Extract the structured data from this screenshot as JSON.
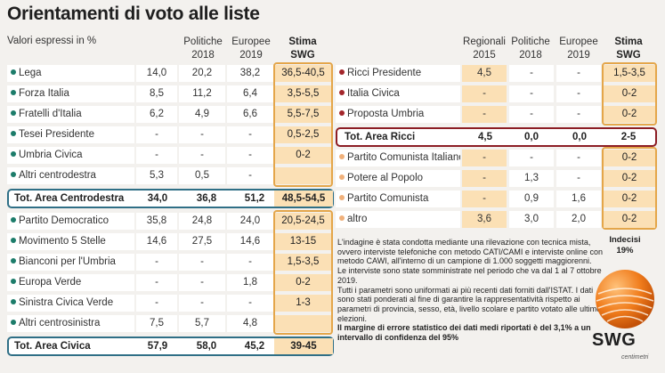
{
  "title": "Orientamenti di voto alle liste",
  "subtitle": "Valori espressi in %",
  "left": {
    "headers": {
      "pol": [
        "Politiche",
        "2018"
      ],
      "eur": [
        "Europee",
        "2019"
      ],
      "stima": [
        "Stima",
        "SWG"
      ]
    },
    "rows": [
      {
        "name": "Lega",
        "dot": "#1c7c6a",
        "c1": "14,0",
        "c2": "20,2",
        "c3": "38,2",
        "s": "36,5-40,5"
      },
      {
        "name": "Forza Italia",
        "dot": "#1c7c6a",
        "c1": "8,5",
        "c2": "11,2",
        "c3": "6,4",
        "s": "3,5-5,5"
      },
      {
        "name": "Fratelli d'Italia",
        "dot": "#1c7c6a",
        "c1": "6,2",
        "c2": "4,9",
        "c3": "6,6",
        "s": "5,5-7,5"
      },
      {
        "name": "Tesei Presidente",
        "dot": "#1c7c6a",
        "c1": "-",
        "c2": "-",
        "c3": "-",
        "s": "0,5-2,5"
      },
      {
        "name": "Umbria Civica",
        "dot": "#1c7c6a",
        "c1": "-",
        "c2": "-",
        "c3": "-",
        "s": "0-2"
      },
      {
        "name": "Altri centrodestra",
        "dot": "#1c7c6a",
        "c1": "5,3",
        "c2": "0,5",
        "c3": "-",
        "s": ""
      }
    ],
    "total1": {
      "name": "Tot. Area Centrodestra",
      "c1": "34,0",
      "c2": "36,8",
      "c3": "51,2",
      "s": "48,5-54,5"
    },
    "rows2": [
      {
        "name": "Partito Democratico",
        "dot": "#1c7c6a",
        "c1": "35,8",
        "c2": "24,8",
        "c3": "24,0",
        "s": "20,5-24,5"
      },
      {
        "name": "Movimento 5 Stelle",
        "dot": "#1c7c6a",
        "c1": "14,6",
        "c2": "27,5",
        "c3": "14,6",
        "s": "13-15"
      },
      {
        "name": "Bianconi per l'Umbria",
        "dot": "#1c7c6a",
        "c1": "-",
        "c2": "-",
        "c3": "-",
        "s": "1,5-3,5"
      },
      {
        "name": "Europa Verde",
        "dot": "#1c7c6a",
        "c1": "-",
        "c2": "-",
        "c3": "1,8",
        "s": "0-2"
      },
      {
        "name": "Sinistra Civica Verde",
        "dot": "#1c7c6a",
        "c1": "-",
        "c2": "-",
        "c3": "-",
        "s": "1-3"
      },
      {
        "name": "Altri centrosinistra",
        "dot": "#1c7c6a",
        "c1": "7,5",
        "c2": "5,7",
        "c3": "4,8",
        "s": ""
      }
    ],
    "total2": {
      "name": "Tot. Area Civica",
      "c1": "57,9",
      "c2": "58,0",
      "c3": "45,2",
      "s": "39-45"
    }
  },
  "right": {
    "headers": {
      "reg": [
        "Regionali",
        "2015"
      ],
      "pol": [
        "Politiche",
        "2018"
      ],
      "eur": [
        "Europee",
        "2019"
      ],
      "stima": [
        "Stima",
        "SWG"
      ]
    },
    "rows": [
      {
        "name": "Ricci Presidente",
        "dot": "#a3262b",
        "c0": "4,5",
        "c1": "-",
        "c2": "-",
        "s": "1,5-3,5"
      },
      {
        "name": "Italia Civica",
        "dot": "#a3262b",
        "c0": "-",
        "c1": "-",
        "c2": "-",
        "s": "0-2"
      },
      {
        "name": "Proposta Umbria",
        "dot": "#a3262b",
        "c0": "-",
        "c1": "-",
        "c2": "-",
        "s": "0-2"
      }
    ],
    "total": {
      "name": "Tot. Area Ricci",
      "c0": "4,5",
      "c1": "0,0",
      "c2": "0,0",
      "s": "2-5"
    },
    "rows2": [
      {
        "name": "Partito Comunista Italiano",
        "dot": "#f0b07a",
        "c0": "-",
        "c1": "-",
        "c2": "-",
        "s": "0-2"
      },
      {
        "name": "Potere al Popolo",
        "dot": "#f0b07a",
        "c0": "-",
        "c1": "1,3",
        "c2": "-",
        "s": "0-2"
      },
      {
        "name": "Partito Comunista",
        "dot": "#f0b07a",
        "c0": "-",
        "c1": "0,9",
        "c2": "1,6",
        "s": "0-2"
      },
      {
        "name": "altro",
        "dot": "#f0b07a",
        "c0": "3,6",
        "c1": "3,0",
        "c2": "2,0",
        "s": "0-2"
      }
    ]
  },
  "indecisi": {
    "label": "Indecisi",
    "value": "19%"
  },
  "note": {
    "p1": "L'indagine è stata condotta mediante una rilevazione con tecnica mista, ovvero interviste telefoniche con metodo CATI/CAMI e interviste online con metodo CAWI, all'interno di un campione di 1.000 soggetti maggiorenni.",
    "p2": "Le interviste sono state somministrate nel periodo che va dal 1 al 7 ottobre 2019.",
    "p3": "Tutti i parametri sono uniformati ai più recenti dati forniti dall'ISTAT. I dati sono stati ponderati al fine di garantire la rappresentatività rispetto ai parametri di provincia, sesso, età, livello scolare e partito votato alle ultime elezioni.",
    "p4": "Il margine di errore statistico dei dati medi riportati è del 3,1% a un intervallo di confidenza del 95%"
  },
  "logo": "SWG",
  "credit": "centimetri"
}
